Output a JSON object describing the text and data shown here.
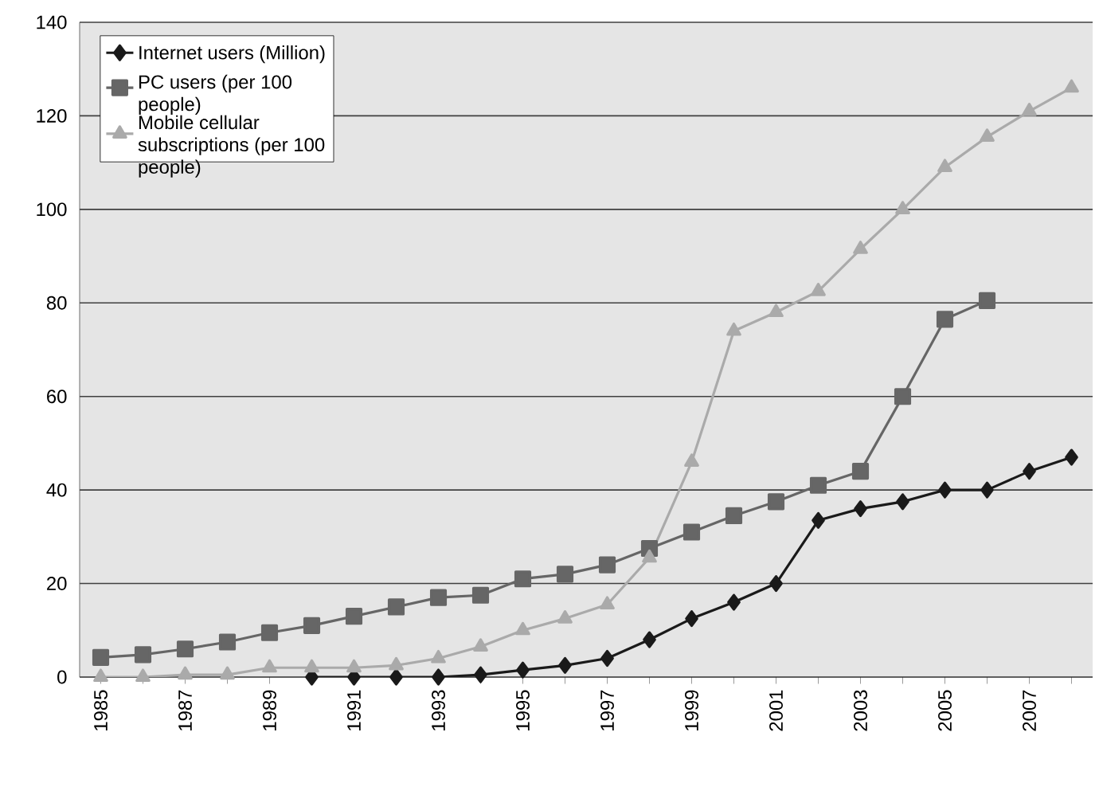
{
  "chart_data": {
    "type": "line",
    "categories": [
      "1985",
      null,
      "1987",
      null,
      "1989",
      null,
      "1991",
      null,
      "1993",
      null,
      "1995",
      null,
      "1997",
      null,
      "1999",
      null,
      "2001",
      null,
      "2003",
      null,
      "2005",
      null,
      "2007",
      null
    ],
    "series": [
      {
        "name": "Internet users (Million)",
        "color": "#1a1a1a",
        "marker": "diamond",
        "values": [
          null,
          null,
          null,
          null,
          null,
          0,
          0,
          0,
          0,
          0.5,
          1.5,
          2.5,
          4,
          8,
          12.5,
          16,
          20,
          33.5,
          36,
          37.5,
          40,
          40,
          44,
          47
        ]
      },
      {
        "name": "PC users (per 100 people)",
        "color": "#666666",
        "marker": "square",
        "values": [
          4.2,
          4.8,
          6,
          7.5,
          9.5,
          11,
          13,
          15,
          17,
          17.5,
          21,
          22,
          24,
          27.5,
          31,
          34.5,
          37.5,
          41,
          44,
          60,
          76.5,
          80.5,
          null,
          null
        ]
      },
      {
        "name": "Mobile cellular subscriptions (per 100 people)",
        "color": "#aaaaaa",
        "marker": "triangle",
        "values": [
          0,
          0,
          0.5,
          0.5,
          2,
          2,
          2,
          2.5,
          4,
          6.5,
          10,
          12.5,
          15.5,
          25.5,
          46,
          74,
          78,
          82.5,
          91.5,
          100,
          109,
          115.5,
          121,
          126
        ]
      }
    ],
    "ylim": [
      0,
      140
    ],
    "yticks": [
      0,
      20,
      40,
      60,
      80,
      100,
      120,
      140
    ],
    "grid": "y",
    "legend": "top left",
    "line_style": "solid"
  }
}
